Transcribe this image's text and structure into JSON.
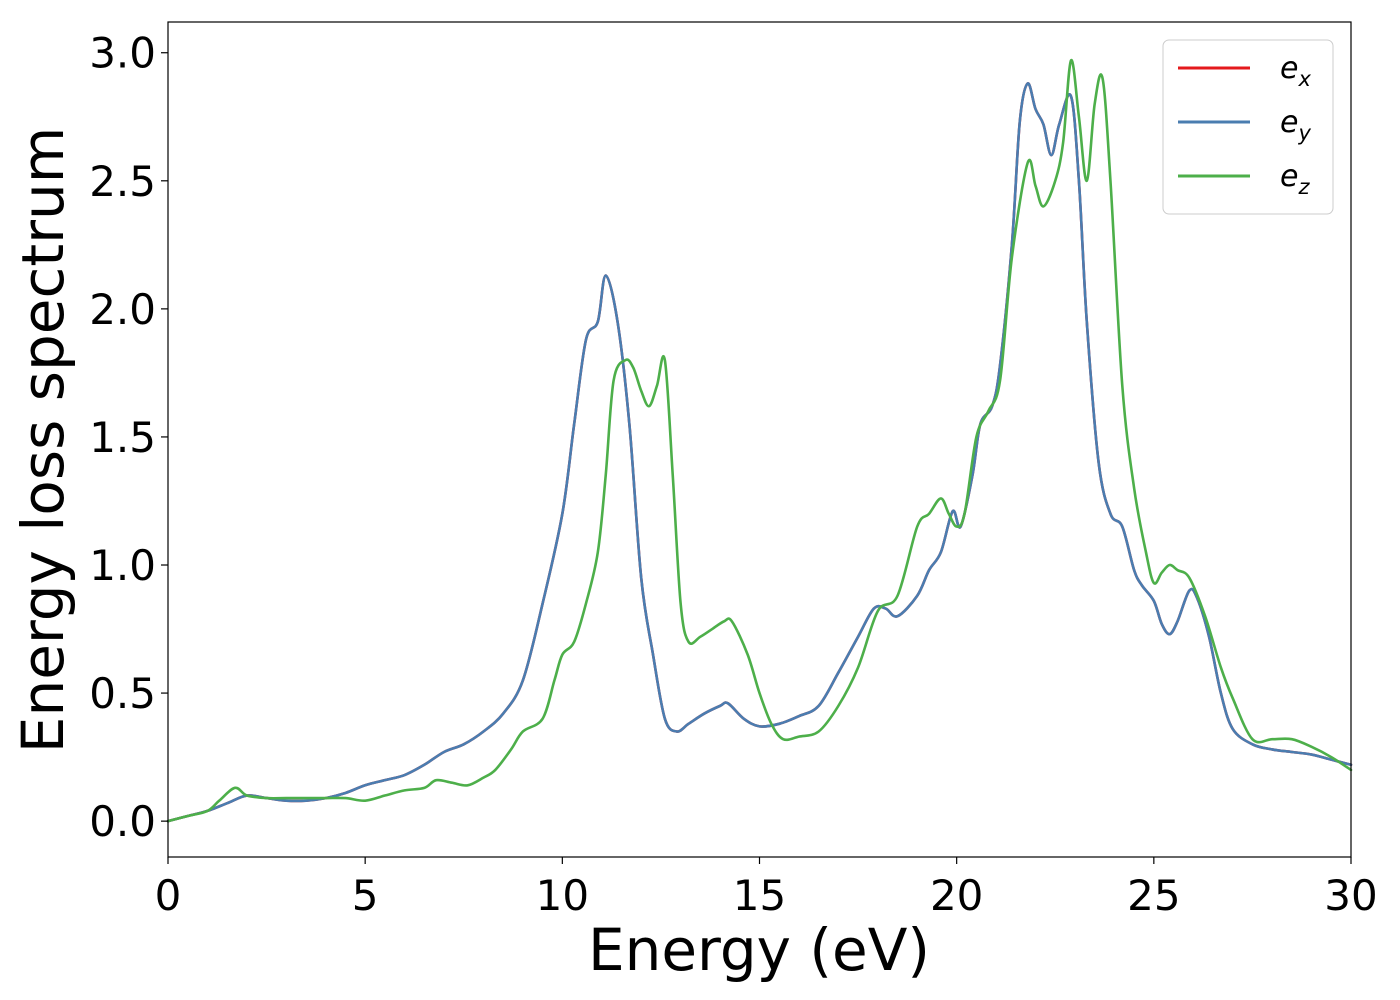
{
  "chart_data": {
    "type": "line",
    "title": "",
    "xlabel": "Energy (eV)",
    "ylabel": "Energy loss spectrum",
    "xlim": [
      0,
      30
    ],
    "ylim": [
      -0.14,
      3.12
    ],
    "xticks": [
      0,
      5,
      10,
      15,
      20,
      25,
      30
    ],
    "xtick_labels": [
      "0",
      "5",
      "10",
      "15",
      "20",
      "25",
      "30"
    ],
    "yticks": [
      0.0,
      0.5,
      1.0,
      1.5,
      2.0,
      2.5,
      3.0
    ],
    "ytick_labels": [
      "0.0",
      "0.5",
      "1.0",
      "1.5",
      "2.0",
      "2.5",
      "3.0"
    ],
    "grid": false,
    "legend_position": "top-right",
    "series": [
      {
        "name": "e_x",
        "name_base": "e",
        "name_sub": "x",
        "color": "#e41a1c",
        "x": [
          0,
          0.5,
          1,
          1.5,
          2,
          2.5,
          3,
          3.5,
          4,
          4.5,
          5,
          5.5,
          6,
          6.5,
          7,
          7.5,
          8,
          8.5,
          9,
          9.5,
          10,
          10.3,
          10.6,
          10.9,
          11.1,
          11.4,
          11.7,
          12,
          12.3,
          12.6,
          12.9,
          13.2,
          13.6,
          14,
          14.2,
          14.6,
          15,
          15.5,
          16,
          16.5,
          17,
          17.5,
          17.9,
          18.2,
          18.5,
          19,
          19.3,
          19.6,
          19.9,
          20.1,
          20.4,
          20.6,
          20.9,
          21.1,
          21.4,
          21.6,
          21.8,
          22,
          22.2,
          22.4,
          22.6,
          22.9,
          23.1,
          23.3,
          23.6,
          23.9,
          24.2,
          24.5,
          24.7,
          25,
          25.2,
          25.4,
          25.6,
          25.9,
          26.1,
          26.4,
          26.7,
          27,
          27.5,
          28,
          28.5,
          29,
          29.5,
          30
        ],
        "y": [
          0.0,
          0.02,
          0.04,
          0.07,
          0.1,
          0.09,
          0.08,
          0.08,
          0.09,
          0.11,
          0.14,
          0.16,
          0.18,
          0.22,
          0.27,
          0.3,
          0.35,
          0.42,
          0.55,
          0.85,
          1.2,
          1.55,
          1.88,
          1.95,
          2.13,
          1.95,
          1.55,
          0.95,
          0.65,
          0.4,
          0.35,
          0.38,
          0.42,
          0.45,
          0.46,
          0.4,
          0.37,
          0.38,
          0.41,
          0.45,
          0.58,
          0.72,
          0.83,
          0.83,
          0.8,
          0.88,
          0.98,
          1.05,
          1.21,
          1.15,
          1.35,
          1.55,
          1.62,
          1.78,
          2.25,
          2.73,
          2.88,
          2.78,
          2.72,
          2.6,
          2.72,
          2.83,
          2.5,
          1.95,
          1.4,
          1.2,
          1.15,
          0.98,
          0.92,
          0.86,
          0.77,
          0.73,
          0.78,
          0.9,
          0.87,
          0.72,
          0.5,
          0.36,
          0.3,
          0.28,
          0.27,
          0.26,
          0.24,
          0.22
        ]
      },
      {
        "name": "e_y",
        "name_base": "e",
        "name_sub": "y",
        "color": "#4a7db0",
        "x": [
          0,
          0.5,
          1,
          1.5,
          2,
          2.5,
          3,
          3.5,
          4,
          4.5,
          5,
          5.5,
          6,
          6.5,
          7,
          7.5,
          8,
          8.5,
          9,
          9.5,
          10,
          10.3,
          10.6,
          10.9,
          11.1,
          11.4,
          11.7,
          12,
          12.3,
          12.6,
          12.9,
          13.2,
          13.6,
          14,
          14.2,
          14.6,
          15,
          15.5,
          16,
          16.5,
          17,
          17.5,
          17.9,
          18.2,
          18.5,
          19,
          19.3,
          19.6,
          19.9,
          20.1,
          20.4,
          20.6,
          20.9,
          21.1,
          21.4,
          21.6,
          21.8,
          22,
          22.2,
          22.4,
          22.6,
          22.9,
          23.1,
          23.3,
          23.6,
          23.9,
          24.2,
          24.5,
          24.7,
          25,
          25.2,
          25.4,
          25.6,
          25.9,
          26.1,
          26.4,
          26.7,
          27,
          27.5,
          28,
          28.5,
          29,
          29.5,
          30
        ],
        "y": [
          0.0,
          0.02,
          0.04,
          0.07,
          0.1,
          0.09,
          0.08,
          0.08,
          0.09,
          0.11,
          0.14,
          0.16,
          0.18,
          0.22,
          0.27,
          0.3,
          0.35,
          0.42,
          0.55,
          0.85,
          1.2,
          1.55,
          1.88,
          1.95,
          2.13,
          1.95,
          1.55,
          0.95,
          0.65,
          0.4,
          0.35,
          0.38,
          0.42,
          0.45,
          0.46,
          0.4,
          0.37,
          0.38,
          0.41,
          0.45,
          0.58,
          0.72,
          0.83,
          0.83,
          0.8,
          0.88,
          0.98,
          1.05,
          1.21,
          1.15,
          1.35,
          1.55,
          1.62,
          1.78,
          2.25,
          2.73,
          2.88,
          2.78,
          2.72,
          2.6,
          2.72,
          2.83,
          2.5,
          1.95,
          1.4,
          1.2,
          1.15,
          0.98,
          0.92,
          0.86,
          0.77,
          0.73,
          0.78,
          0.9,
          0.87,
          0.72,
          0.5,
          0.36,
          0.3,
          0.28,
          0.27,
          0.26,
          0.24,
          0.22
        ]
      },
      {
        "name": "e_z",
        "name_base": "e",
        "name_sub": "z",
        "color": "#4daf4a",
        "x": [
          0,
          0.5,
          1,
          1.3,
          1.7,
          2,
          2.5,
          3,
          3.5,
          4,
          4.5,
          5,
          5.5,
          6,
          6.5,
          6.8,
          7.2,
          7.6,
          8,
          8.3,
          8.7,
          9,
          9.5,
          9.8,
          10,
          10.3,
          10.6,
          10.9,
          11.1,
          11.3,
          11.6,
          11.8,
          12,
          12.2,
          12.4,
          12.6,
          12.8,
          13,
          13.2,
          13.5,
          13.8,
          14.1,
          14.3,
          14.7,
          15,
          15.3,
          15.6,
          16,
          16.5,
          17,
          17.5,
          18,
          18.5,
          19,
          19.3,
          19.6,
          19.8,
          20,
          20.2,
          20.5,
          20.8,
          21.1,
          21.4,
          21.8,
          22,
          22.2,
          22.5,
          22.7,
          22.9,
          23.1,
          23.3,
          23.5,
          23.7,
          23.9,
          24.2,
          24.5,
          24.8,
          25,
          25.2,
          25.4,
          25.6,
          25.9,
          26.3,
          26.7,
          27,
          27.5,
          28,
          28.5,
          29,
          29.5,
          30
        ],
        "y": [
          0.0,
          0.02,
          0.04,
          0.08,
          0.13,
          0.1,
          0.09,
          0.09,
          0.09,
          0.09,
          0.09,
          0.08,
          0.1,
          0.12,
          0.13,
          0.16,
          0.15,
          0.14,
          0.17,
          0.2,
          0.28,
          0.35,
          0.4,
          0.55,
          0.65,
          0.7,
          0.85,
          1.05,
          1.35,
          1.72,
          1.8,
          1.77,
          1.68,
          1.62,
          1.7,
          1.8,
          1.35,
          0.85,
          0.7,
          0.72,
          0.75,
          0.78,
          0.78,
          0.65,
          0.5,
          0.38,
          0.32,
          0.33,
          0.35,
          0.45,
          0.6,
          0.82,
          0.88,
          1.15,
          1.2,
          1.26,
          1.2,
          1.15,
          1.2,
          1.5,
          1.6,
          1.72,
          2.2,
          2.57,
          2.48,
          2.4,
          2.5,
          2.65,
          2.97,
          2.75,
          2.5,
          2.8,
          2.9,
          2.5,
          1.7,
          1.3,
          1.05,
          0.93,
          0.97,
          1.0,
          0.98,
          0.95,
          0.8,
          0.6,
          0.48,
          0.32,
          0.32,
          0.32,
          0.29,
          0.25,
          0.2
        ]
      }
    ]
  }
}
